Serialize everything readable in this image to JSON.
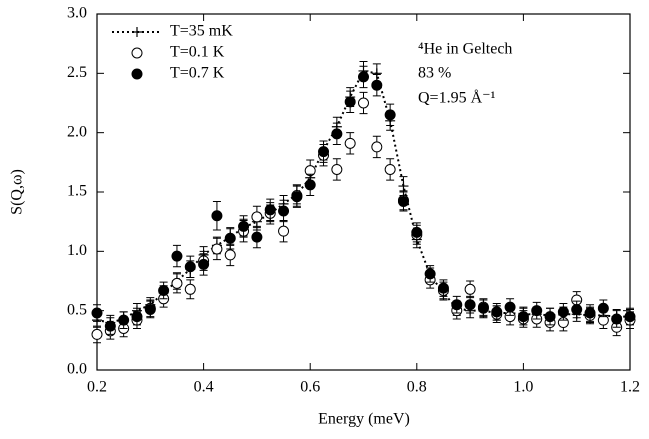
{
  "chart_data": {
    "type": "line",
    "xlabel": "Energy (meV)",
    "ylabel": "S(Q,ω)",
    "annotations": [
      "⁴He in Geltech",
      "83 %",
      "Q=1.95 Å⁻¹"
    ],
    "legend": "upper left",
    "x": [
      0.2,
      0.225,
      0.25,
      0.275,
      0.3,
      0.325,
      0.35,
      0.375,
      0.4,
      0.425,
      0.45,
      0.475,
      0.5,
      0.525,
      0.55,
      0.575,
      0.6,
      0.625,
      0.65,
      0.675,
      0.7,
      0.725,
      0.75,
      0.775,
      0.8,
      0.825,
      0.85,
      0.875,
      0.9,
      0.925,
      0.95,
      0.975,
      1.0,
      1.025,
      1.05,
      1.075,
      1.1,
      1.125,
      1.15,
      1.175,
      1.2
    ],
    "series": [
      {
        "name": "T=35 mK",
        "color": "#000000",
        "style": "dotted-plus",
        "values": [
          0.42,
          0.4,
          0.43,
          0.5,
          0.55,
          0.65,
          0.75,
          0.85,
          0.97,
          1.05,
          1.12,
          1.2,
          1.25,
          1.32,
          1.4,
          1.48,
          1.62,
          1.85,
          2.05,
          2.3,
          2.52,
          2.5,
          2.1,
          1.55,
          1.1,
          0.8,
          0.65,
          0.52,
          0.5,
          0.5,
          0.48,
          0.48,
          0.47,
          0.47,
          0.46,
          0.47,
          0.47,
          0.46,
          0.46,
          0.45,
          0.45
        ],
        "errors": [
          0.06,
          0.06,
          0.06,
          0.06,
          0.06,
          0.06,
          0.07,
          0.07,
          0.07,
          0.07,
          0.07,
          0.07,
          0.07,
          0.07,
          0.07,
          0.08,
          0.08,
          0.08,
          0.08,
          0.08,
          0.08,
          0.08,
          0.08,
          0.08,
          0.07,
          0.06,
          0.06,
          0.06,
          0.06,
          0.06,
          0.06,
          0.06,
          0.06,
          0.06,
          0.06,
          0.06,
          0.06,
          0.06,
          0.06,
          0.06,
          0.06
        ]
      },
      {
        "name": "T=0.1 K",
        "color": "#000000",
        "style": "open-circle",
        "values": [
          0.3,
          0.33,
          0.35,
          0.42,
          0.52,
          0.6,
          0.73,
          0.68,
          0.92,
          1.02,
          0.97,
          1.17,
          1.29,
          1.32,
          1.17,
          1.47,
          1.68,
          1.81,
          1.69,
          1.91,
          2.25,
          1.88,
          1.69,
          1.43,
          1.14,
          0.76,
          0.67,
          0.5,
          0.68,
          0.53,
          0.47,
          0.45,
          0.43,
          0.43,
          0.4,
          0.4,
          0.59,
          0.46,
          0.42,
          0.36,
          0.42
        ],
        "errors": [
          0.07,
          0.07,
          0.07,
          0.07,
          0.07,
          0.07,
          0.08,
          0.08,
          0.08,
          0.09,
          0.09,
          0.09,
          0.09,
          0.09,
          0.09,
          0.09,
          0.09,
          0.09,
          0.09,
          0.09,
          0.09,
          0.09,
          0.09,
          0.08,
          0.08,
          0.07,
          0.07,
          0.07,
          0.07,
          0.07,
          0.07,
          0.07,
          0.07,
          0.07,
          0.07,
          0.07,
          0.07,
          0.07,
          0.07,
          0.07,
          0.07
        ]
      },
      {
        "name": "T=0.7 K",
        "color": "#000000",
        "style": "filled-circle",
        "values": [
          0.48,
          0.37,
          0.42,
          0.45,
          0.51,
          0.67,
          0.96,
          0.87,
          0.89,
          1.3,
          1.11,
          1.21,
          1.12,
          1.35,
          1.34,
          1.46,
          1.56,
          1.84,
          1.99,
          2.26,
          2.47,
          2.4,
          2.15,
          1.42,
          1.16,
          0.81,
          0.69,
          0.55,
          0.55,
          0.52,
          0.49,
          0.53,
          0.45,
          0.5,
          0.45,
          0.49,
          0.51,
          0.48,
          0.52,
          0.43,
          0.45
        ],
        "errors": [
          0.07,
          0.07,
          0.07,
          0.07,
          0.07,
          0.07,
          0.09,
          0.09,
          0.09,
          0.12,
          0.09,
          0.09,
          0.09,
          0.09,
          0.09,
          0.09,
          0.09,
          0.09,
          0.09,
          0.09,
          0.09,
          0.09,
          0.09,
          0.08,
          0.08,
          0.07,
          0.07,
          0.07,
          0.07,
          0.07,
          0.07,
          0.07,
          0.07,
          0.07,
          0.07,
          0.07,
          0.07,
          0.07,
          0.07,
          0.07,
          0.07
        ]
      }
    ],
    "xlim": [
      0.2,
      1.2
    ],
    "xticks": [
      0.2,
      0.4,
      0.6,
      0.8,
      {
        "value": 1,
        "label": "1.0"
      },
      1.2
    ],
    "ylim": [
      0,
      3
    ],
    "yticks": [
      {
        "value": 0,
        "label": "0.0"
      },
      0.5,
      {
        "value": 1,
        "label": "1.0"
      },
      1.5,
      {
        "value": 2,
        "label": "2.0"
      },
      2.5,
      {
        "value": 3,
        "label": "3.0"
      }
    ]
  }
}
